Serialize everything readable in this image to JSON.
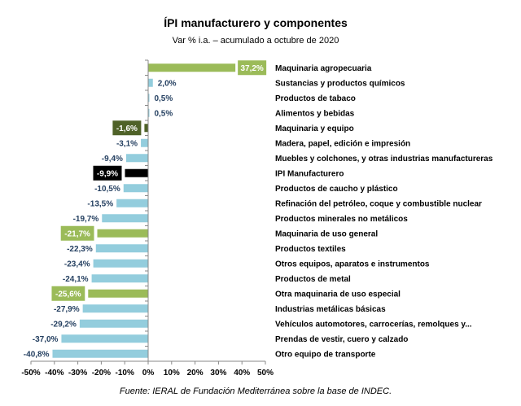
{
  "chart_data": {
    "type": "bar",
    "orientation": "horizontal",
    "title": "ÍPI manufacturero y componentes",
    "subtitle": "Var % i.a. – acumulado a octubre de 2020",
    "source": "Fuente: IERAL de Fundación Mediterránea sobre la base de INDEC.",
    "xlim": [
      -50,
      50
    ],
    "xticks": [
      "-50%",
      "-40%",
      "-30%",
      "-20%",
      "-10%",
      "0%",
      "10%",
      "20%",
      "30%",
      "40%",
      "50%"
    ],
    "grid": false,
    "categories": [
      "Maquinaria agropecuaria",
      "Sustancias y productos químicos",
      "Productos de tabaco",
      "Alimentos y bebidas",
      "Maquinaria y equipo",
      "Madera, papel, edición e impresión",
      "Muebles y colchones, y otras industrias manufactureras",
      "IPI Manufacturero",
      "Productos de caucho y plástico",
      "Refinación del petróleo, coque y combustible nuclear",
      "Productos minerales no metálicos",
      "Maquinaria de uso general",
      "Productos textiles",
      "Otros equipos, aparatos e instrumentos",
      "Productos de metal",
      "Otra maquinaria de uso especial",
      "Industrias metálicas básicas",
      "Vehículos automotores, carrocerías, remolques y...",
      "Prendas de vestir, cuero y calzado",
      "Otro equipo de transporte"
    ],
    "values": [
      37.2,
      2.0,
      0.5,
      0.5,
      -1.6,
      -3.1,
      -9.4,
      -9.9,
      -10.5,
      -13.5,
      -19.7,
      -21.7,
      -22.3,
      -23.4,
      -24.1,
      -25.6,
      -27.9,
      -29.2,
      -37.0,
      -40.8
    ],
    "value_labels": [
      "37,2%",
      "2,0%",
      "0,5%",
      "0,5%",
      "-1,6%",
      "-3,1%",
      "-9,4%",
      "-9,9%",
      "-10,5%",
      "-13,5%",
      "-19,7%",
      "-21,7%",
      "-22,3%",
      "-23,4%",
      "-24,1%",
      "-25,6%",
      "-27,9%",
      "-29,2%",
      "-37,0%",
      "-40,8%"
    ],
    "highlight": [
      "green",
      "default",
      "default",
      "default",
      "olive",
      "default",
      "default",
      "black",
      "default",
      "default",
      "default",
      "green",
      "default",
      "default",
      "default",
      "green",
      "default",
      "default",
      "default",
      "default"
    ],
    "colors": {
      "default": "#93CDDD",
      "green": "#9BBB59",
      "olive": "#4F6228",
      "black": "#000000",
      "label": "#254061"
    }
  }
}
